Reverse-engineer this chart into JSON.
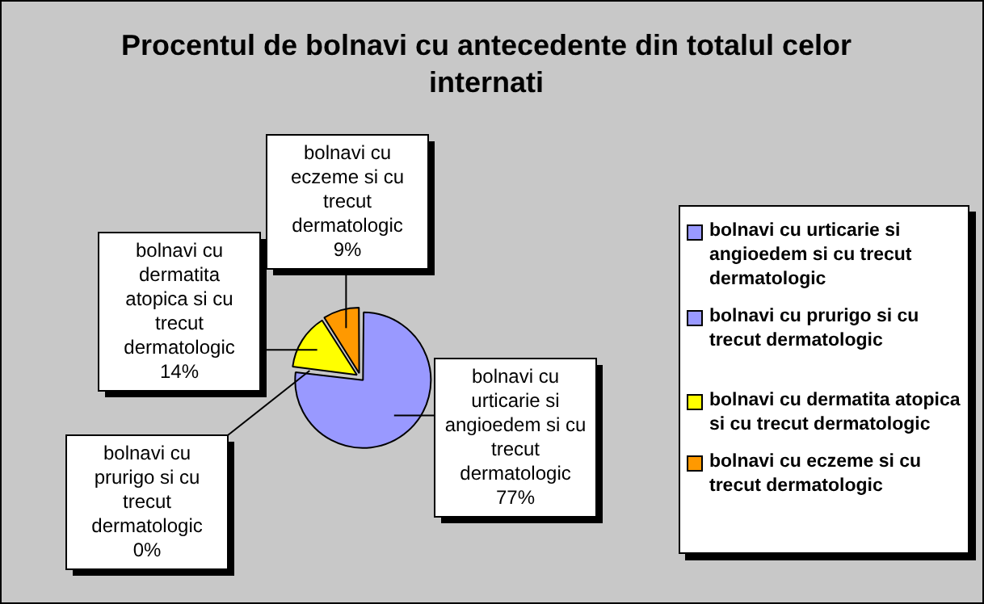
{
  "chart_data": {
    "type": "pie",
    "title": "Procentul de bolnavi cu antecedente din totalul celor internati",
    "categories": [
      "bolnavi cu urticarie si angioedem si cu trecut dermatologic",
      "bolnavi cu prurigo si cu trecut dermatologic",
      "bolnavi cu dermatita atopica si cu trecut dermatologic",
      "bolnavi cu eczeme si cu trecut dermatologic"
    ],
    "values": [
      77,
      0,
      14,
      9
    ],
    "value_labels": [
      "77%",
      "0%",
      "14%",
      "9%"
    ],
    "colors": [
      "#9999ff",
      "#9999ff",
      "#ffff00",
      "#ff9900"
    ],
    "legend": "right"
  }
}
